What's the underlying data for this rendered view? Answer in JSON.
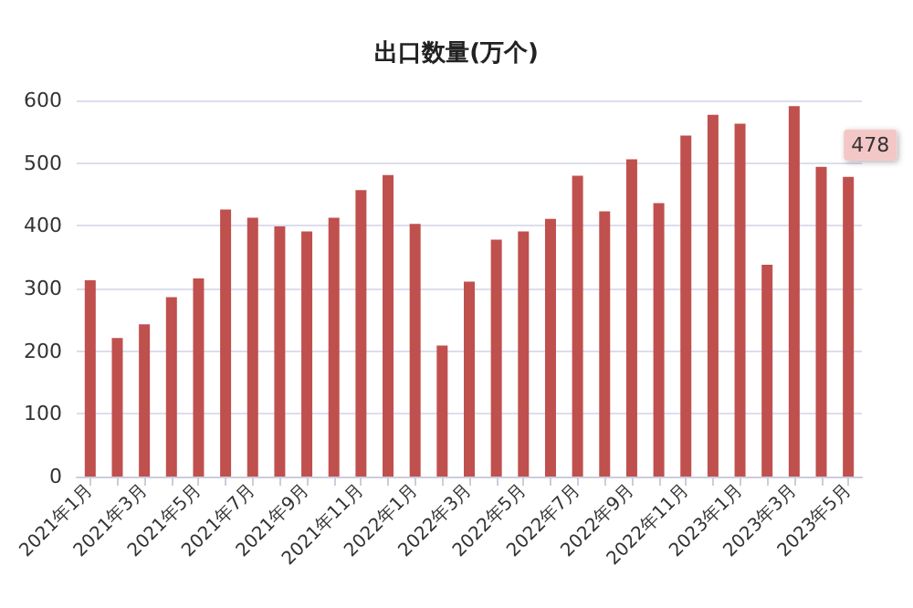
{
  "chart_data": {
    "type": "bar",
    "title": "出口数量(万个)",
    "categories": [
      "2021年1月",
      null,
      "2021年3月",
      null,
      "2021年5月",
      null,
      "2021年7月",
      null,
      "2021年9月",
      null,
      "2021年11月",
      null,
      "2022年1月",
      null,
      "2022年3月",
      null,
      "2022年5月",
      null,
      "2022年7月",
      null,
      "2022年9月",
      null,
      "2022年11月",
      null,
      "2023年1月",
      null,
      "2023年3月",
      null,
      "2023年5月"
    ],
    "values": [
      313,
      221,
      243,
      286,
      316,
      426,
      413,
      399,
      391,
      413,
      457,
      481,
      403,
      209,
      311,
      378,
      391,
      411,
      480,
      423,
      506,
      436,
      544,
      577,
      563,
      338,
      591,
      494,
      478
    ],
    "value_labels": [
      null,
      null,
      null,
      null,
      null,
      null,
      null,
      null,
      null,
      null,
      null,
      null,
      null,
      null,
      null,
      null,
      null,
      null,
      null,
      null,
      null,
      null,
      null,
      null,
      null,
      null,
      null,
      null,
      "478"
    ],
    "color": "#c0504d",
    "ylim": [
      0,
      600
    ],
    "yticks": [
      0,
      100,
      200,
      300,
      400,
      500,
      600
    ],
    "grid": "y"
  }
}
